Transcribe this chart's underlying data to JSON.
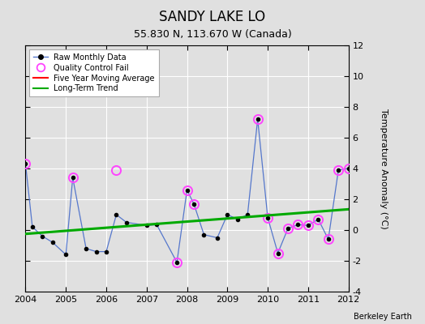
{
  "title": "SANDY LAKE LO",
  "subtitle": "55.830 N, 113.670 W (Canada)",
  "credit": "Berkeley Earth",
  "ylabel": "Temperature Anomaly (°C)",
  "ylim": [
    -4,
    12
  ],
  "yticks": [
    -4,
    -2,
    0,
    2,
    4,
    6,
    8,
    10,
    12
  ],
  "xlim": [
    2004,
    2012
  ],
  "xticks": [
    2004,
    2005,
    2006,
    2007,
    2008,
    2009,
    2010,
    2011,
    2012
  ],
  "bg_color": "#e0e0e0",
  "plot_bg": "#e0e0e0",
  "raw_x": [
    2004.0,
    2004.17,
    2004.42,
    2004.67,
    2005.0,
    2005.17,
    2005.5,
    2005.75,
    2006.0,
    2006.25,
    2006.5,
    2007.0,
    2007.25,
    2007.75,
    2008.0,
    2008.17,
    2008.42,
    2008.75,
    2009.0,
    2009.25,
    2009.5,
    2009.75,
    2010.0,
    2010.25,
    2010.5,
    2010.75,
    2011.0,
    2011.25,
    2011.5,
    2011.75,
    2012.0
  ],
  "raw_y": [
    4.3,
    0.2,
    -0.4,
    -0.8,
    -1.6,
    3.4,
    -1.2,
    -1.4,
    -1.4,
    1.0,
    0.5,
    0.3,
    0.35,
    -2.1,
    2.6,
    1.7,
    -0.3,
    -0.5,
    1.0,
    0.7,
    1.0,
    7.2,
    0.8,
    -1.5,
    0.1,
    0.35,
    0.3,
    0.7,
    -0.6,
    3.9,
    4.0
  ],
  "qc_x": [
    2004.0,
    2005.17,
    2006.25,
    2007.75,
    2008.0,
    2008.17,
    2009.75,
    2010.0,
    2010.25,
    2010.5,
    2010.75,
    2011.0,
    2011.25,
    2011.5,
    2011.75,
    2012.0
  ],
  "qc_y": [
    4.3,
    3.4,
    3.9,
    -2.1,
    2.6,
    1.7,
    7.2,
    0.8,
    -1.5,
    0.1,
    0.35,
    0.3,
    0.7,
    -0.6,
    3.9,
    4.0
  ],
  "trend_x": [
    2004.0,
    2012.0
  ],
  "trend_y": [
    -0.25,
    1.35
  ],
  "raw_line_color": "#5577cc",
  "raw_dot_color": "#000000",
  "qc_color": "#ff44ff",
  "trend_color": "#00aa00",
  "mavg_color": "#ff0000",
  "grid_color": "#ffffff",
  "title_fontsize": 12,
  "subtitle_fontsize": 9,
  "tick_fontsize": 8
}
